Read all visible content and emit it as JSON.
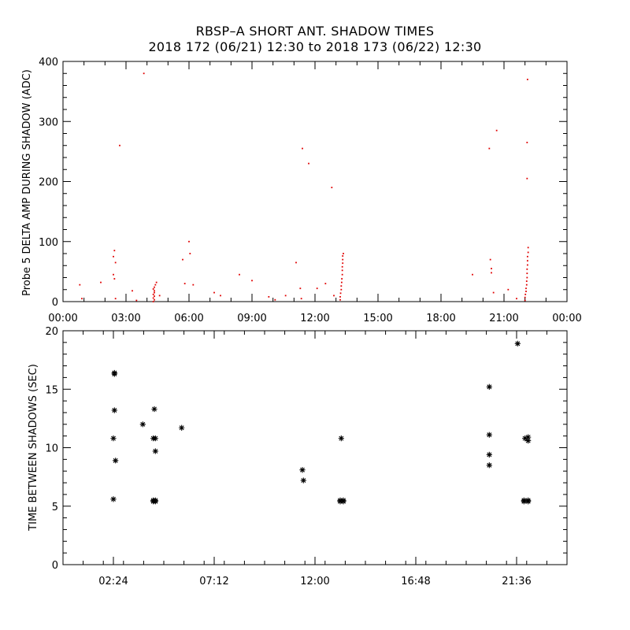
{
  "figure": {
    "title": "RBSP–A SHORT ANT. SHADOW TIMES",
    "subtitle": "2018 172 (06/21) 12:30 to 2018 173 (06/22) 12:30"
  },
  "chart_data": [
    {
      "type": "scatter",
      "title": "",
      "xlabel": "",
      "ylabel": "Probe 5 DELTA AMP DURING SHADOW (ADC)",
      "xlim": [
        0,
        24
      ],
      "ylim": [
        0,
        400
      ],
      "x_tick_labels": [
        "00:00",
        "03:00",
        "06:00",
        "09:00",
        "12:00",
        "15:00",
        "18:00",
        "21:00",
        "00:00"
      ],
      "y_tick_labels": [
        "0",
        "100",
        "200",
        "300",
        "400"
      ],
      "grid": false,
      "marker_color": "#e00000",
      "series": [
        {
          "points": [
            {
              "x": 0.8,
              "y": 28
            },
            {
              "x": 0.9,
              "y": 5
            },
            {
              "x": 1.8,
              "y": 32
            },
            {
              "x": 2.45,
              "y": 85
            },
            {
              "x": 2.4,
              "y": 75
            },
            {
              "x": 2.5,
              "y": 65
            },
            {
              "x": 2.4,
              "y": 45
            },
            {
              "x": 2.45,
              "y": 38
            },
            {
              "x": 2.5,
              "y": 5
            },
            {
              "x": 2.7,
              "y": 260
            },
            {
              "x": 3.3,
              "y": 18
            },
            {
              "x": 3.5,
              "y": 2
            },
            {
              "x": 3.85,
              "y": 380
            },
            {
              "x": 4.3,
              "y": 0
            },
            {
              "x": 4.35,
              "y": 3
            },
            {
              "x": 4.3,
              "y": 6
            },
            {
              "x": 4.35,
              "y": 9
            },
            {
              "x": 4.3,
              "y": 12
            },
            {
              "x": 4.35,
              "y": 15
            },
            {
              "x": 4.35,
              "y": 18
            },
            {
              "x": 4.3,
              "y": 21
            },
            {
              "x": 4.35,
              "y": 24
            },
            {
              "x": 4.4,
              "y": 28
            },
            {
              "x": 4.45,
              "y": 32
            },
            {
              "x": 4.6,
              "y": 10
            },
            {
              "x": 5.7,
              "y": 70
            },
            {
              "x": 5.8,
              "y": 30
            },
            {
              "x": 6.0,
              "y": 100
            },
            {
              "x": 6.05,
              "y": 80
            },
            {
              "x": 6.2,
              "y": 28
            },
            {
              "x": 7.2,
              "y": 15
            },
            {
              "x": 7.5,
              "y": 10
            },
            {
              "x": 8.4,
              "y": 45
            },
            {
              "x": 9.0,
              "y": 35
            },
            {
              "x": 9.8,
              "y": 8
            },
            {
              "x": 10.1,
              "y": 3
            },
            {
              "x": 10.6,
              "y": 10
            },
            {
              "x": 11.1,
              "y": 65
            },
            {
              "x": 11.3,
              "y": 22
            },
            {
              "x": 11.35,
              "y": 5
            },
            {
              "x": 11.4,
              "y": 255
            },
            {
              "x": 11.7,
              "y": 230
            },
            {
              "x": 12.1,
              "y": 22
            },
            {
              "x": 12.5,
              "y": 30
            },
            {
              "x": 12.8,
              "y": 190
            },
            {
              "x": 12.9,
              "y": 10
            },
            {
              "x": 13.2,
              "y": 3
            },
            {
              "x": 13.2,
              "y": 8
            },
            {
              "x": 13.22,
              "y": 14
            },
            {
              "x": 13.25,
              "y": 20
            },
            {
              "x": 13.25,
              "y": 26
            },
            {
              "x": 13.27,
              "y": 32
            },
            {
              "x": 13.28,
              "y": 38
            },
            {
              "x": 13.3,
              "y": 45
            },
            {
              "x": 13.3,
              "y": 52
            },
            {
              "x": 13.3,
              "y": 58
            },
            {
              "x": 13.32,
              "y": 64
            },
            {
              "x": 13.32,
              "y": 70
            },
            {
              "x": 13.32,
              "y": 76
            },
            {
              "x": 13.35,
              "y": 80
            },
            {
              "x": 19.5,
              "y": 45
            },
            {
              "x": 20.3,
              "y": 255
            },
            {
              "x": 20.35,
              "y": 70
            },
            {
              "x": 20.4,
              "y": 55
            },
            {
              "x": 20.4,
              "y": 48
            },
            {
              "x": 20.5,
              "y": 15
            },
            {
              "x": 20.65,
              "y": 285
            },
            {
              "x": 21.2,
              "y": 20
            },
            {
              "x": 21.6,
              "y": 5
            },
            {
              "x": 22.0,
              "y": 2
            },
            {
              "x": 22.0,
              "y": 7
            },
            {
              "x": 22.02,
              "y": 12
            },
            {
              "x": 22.05,
              "y": 17
            },
            {
              "x": 22.05,
              "y": 22
            },
            {
              "x": 22.08,
              "y": 28
            },
            {
              "x": 22.08,
              "y": 34
            },
            {
              "x": 22.1,
              "y": 40
            },
            {
              "x": 22.1,
              "y": 47
            },
            {
              "x": 22.1,
              "y": 54
            },
            {
              "x": 22.12,
              "y": 61
            },
            {
              "x": 22.12,
              "y": 68
            },
            {
              "x": 22.12,
              "y": 75
            },
            {
              "x": 22.15,
              "y": 82
            },
            {
              "x": 22.15,
              "y": 90
            },
            {
              "x": 22.1,
              "y": 205
            },
            {
              "x": 22.1,
              "y": 265
            },
            {
              "x": 22.12,
              "y": 370
            }
          ]
        }
      ]
    },
    {
      "type": "scatter",
      "title": "",
      "xlabel": "",
      "ylabel": "TIME BETWEEN SHADOWS (SEC)",
      "xlim": [
        0,
        24
      ],
      "ylim": [
        0,
        20
      ],
      "x_ticks": [
        2.4,
        7.2,
        12.0,
        16.8,
        21.6
      ],
      "x_tick_labels": [
        "02:24",
        "07:12",
        "12:00",
        "16:48",
        "21:36"
      ],
      "y_tick_labels": [
        "0",
        "5",
        "10",
        "15",
        "20"
      ],
      "grid": false,
      "marker": "asterisk",
      "marker_color": "#000000",
      "series": [
        {
          "points": [
            {
              "x": 2.45,
              "y": 16.4
            },
            {
              "x": 2.45,
              "y": 16.3
            },
            {
              "x": 2.45,
              "y": 13.2
            },
            {
              "x": 2.4,
              "y": 10.8
            },
            {
              "x": 2.5,
              "y": 8.9
            },
            {
              "x": 2.4,
              "y": 5.6
            },
            {
              "x": 3.8,
              "y": 12.0
            },
            {
              "x": 4.35,
              "y": 13.3
            },
            {
              "x": 4.3,
              "y": 10.8
            },
            {
              "x": 4.4,
              "y": 10.8
            },
            {
              "x": 4.4,
              "y": 9.7
            },
            {
              "x": 4.3,
              "y": 5.5
            },
            {
              "x": 4.4,
              "y": 5.5
            },
            {
              "x": 4.3,
              "y": 5.4
            },
            {
              "x": 4.4,
              "y": 5.4
            },
            {
              "x": 5.65,
              "y": 11.7
            },
            {
              "x": 11.4,
              "y": 8.1
            },
            {
              "x": 11.45,
              "y": 7.2
            },
            {
              "x": 13.25,
              "y": 10.8
            },
            {
              "x": 13.2,
              "y": 5.5
            },
            {
              "x": 13.35,
              "y": 5.5
            },
            {
              "x": 13.2,
              "y": 5.4
            },
            {
              "x": 13.35,
              "y": 5.4
            },
            {
              "x": 20.3,
              "y": 15.2
            },
            {
              "x": 20.3,
              "y": 11.1
            },
            {
              "x": 20.3,
              "y": 9.4
            },
            {
              "x": 20.3,
              "y": 8.5
            },
            {
              "x": 21.65,
              "y": 18.9
            },
            {
              "x": 22.0,
              "y": 10.8
            },
            {
              "x": 22.15,
              "y": 10.6
            },
            {
              "x": 22.15,
              "y": 10.9
            },
            {
              "x": 21.95,
              "y": 5.5
            },
            {
              "x": 22.15,
              "y": 5.5
            },
            {
              "x": 21.95,
              "y": 5.4
            },
            {
              "x": 22.15,
              "y": 5.4
            }
          ]
        }
      ]
    }
  ]
}
